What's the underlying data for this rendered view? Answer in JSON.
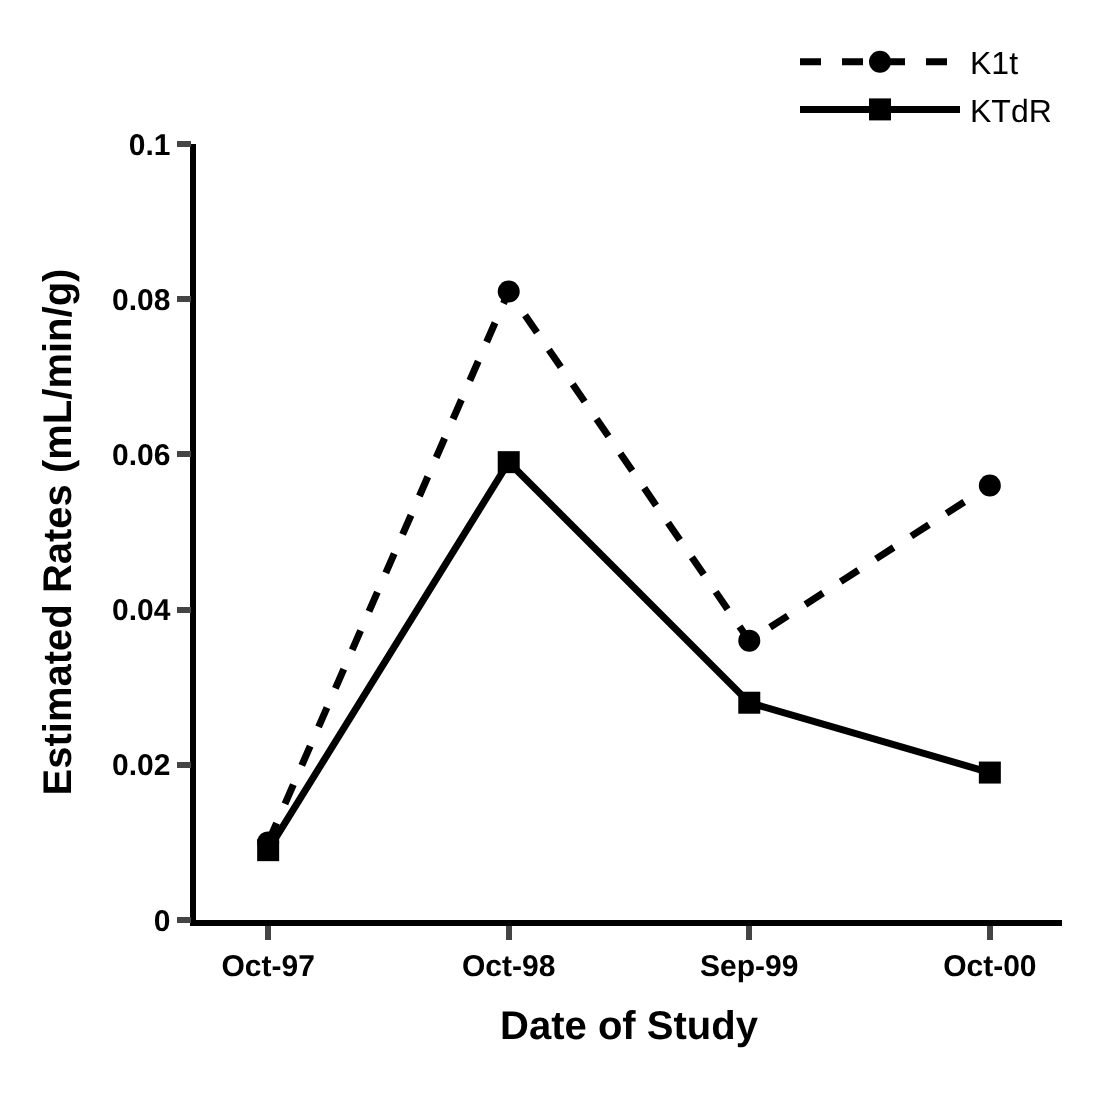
{
  "chart_data": {
    "type": "line",
    "xlabel": "Date of Study",
    "ylabel": "Estimated Rates (mL/min/g)",
    "categories": [
      "Oct-97",
      "Oct-98",
      "Sep-99",
      "Oct-00"
    ],
    "series": [
      {
        "name": "K1t",
        "color": "#000000",
        "values": [
          0.01,
          0.081,
          0.036,
          0.056
        ],
        "marker": "circle",
        "line_style": "dashed"
      },
      {
        "name": "KTdR",
        "color": "#000000",
        "values": [
          0.009,
          0.059,
          0.028,
          0.019
        ],
        "marker": "square",
        "line_style": "solid"
      }
    ],
    "ylim": [
      0,
      0.1
    ],
    "yticks": [
      0,
      0.02,
      0.04,
      0.06,
      0.08,
      0.1
    ],
    "grid": false,
    "legend": "top right"
  }
}
